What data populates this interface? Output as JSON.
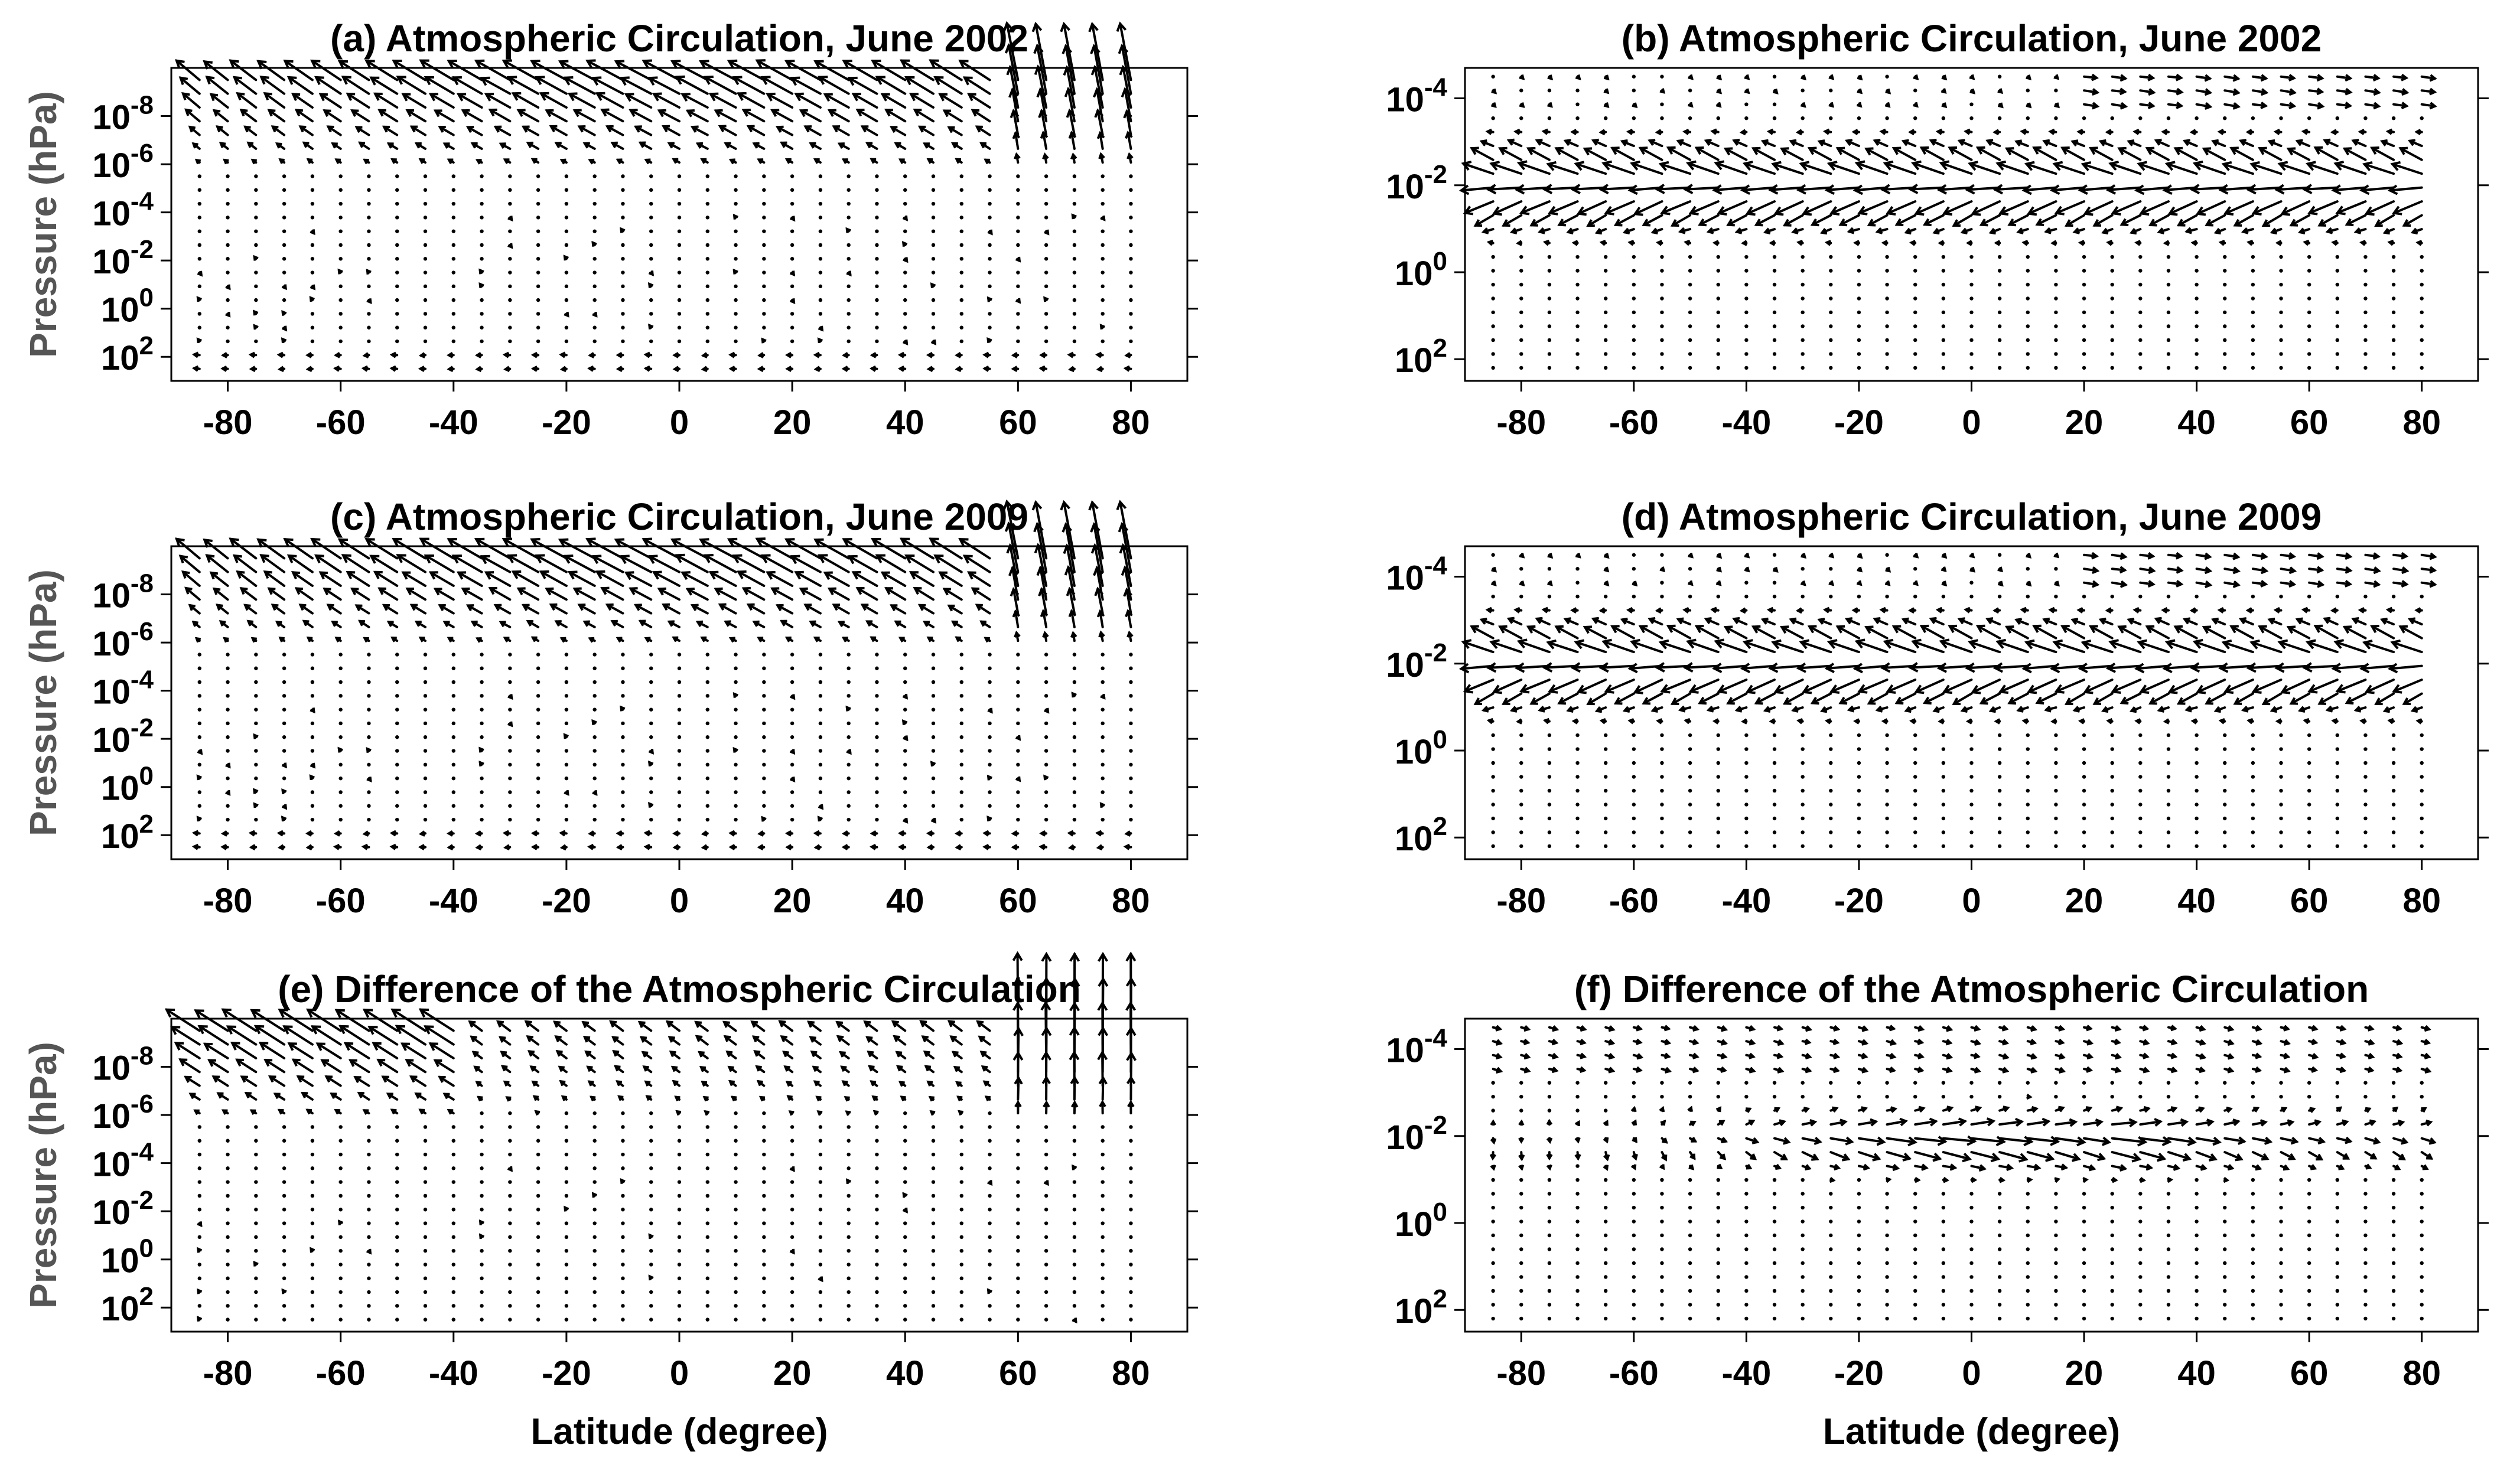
{
  "figure": {
    "y_axis_label": "Pressure (hPa)",
    "x_axis_label": "Latitude (degree)"
  },
  "chart_data": [
    {
      "id": "a",
      "type": "quiver",
      "title": "(a) Atmospheric Circulation, June 2002",
      "xlabel": "",
      "ylabel": "Pressure (hPa)",
      "xlim": [
        -90,
        90
      ],
      "xticks": [
        -80,
        -60,
        -40,
        -20,
        0,
        20,
        40,
        60,
        80
      ],
      "ylog": true,
      "ylim_exp": [
        -10,
        3
      ],
      "yticks": [
        {
          "base": "10",
          "exp": "-8",
          "v": -8
        },
        {
          "base": "10",
          "exp": "-6",
          "v": -6
        },
        {
          "base": "10",
          "exp": "-4",
          "v": -4
        },
        {
          "base": "10",
          "exp": "-2",
          "v": -2
        },
        {
          "base": "10",
          "exp": "0",
          "v": 0
        },
        {
          "base": "10",
          "exp": "2",
          "v": 2
        }
      ],
      "lat_columns": [
        -85,
        -80,
        -75,
        -70,
        -65,
        -60,
        -55,
        -50,
        -45,
        -40,
        -35,
        -30,
        -25,
        -20,
        -15,
        -10,
        -5,
        0,
        5,
        10,
        15,
        20,
        25,
        30,
        35,
        40,
        45,
        50,
        55,
        60,
        65,
        70,
        75,
        80
      ],
      "level_range_exp": [
        -9.5,
        2.5
      ],
      "pattern": "upper"
    },
    {
      "id": "b",
      "type": "quiver",
      "title": "(b) Atmospheric Circulation, June 2002",
      "xlabel": "",
      "ylabel": "",
      "xlim": [
        -90,
        90
      ],
      "xticks": [
        -80,
        -60,
        -40,
        -20,
        0,
        20,
        40,
        60,
        80
      ],
      "ylog": true,
      "ylim_exp": [
        -4.7,
        2.5
      ],
      "yticks": [
        {
          "base": "10",
          "exp": "-4",
          "v": -4
        },
        {
          "base": "10",
          "exp": "-2",
          "v": -2
        },
        {
          "base": "10",
          "exp": "0",
          "v": 0
        },
        {
          "base": "10",
          "exp": "2",
          "v": 2
        }
      ],
      "lat_columns": [
        -85,
        -80,
        -75,
        -70,
        -65,
        -60,
        -55,
        -50,
        -45,
        -40,
        -35,
        -30,
        -25,
        -20,
        -15,
        -10,
        -5,
        0,
        5,
        10,
        15,
        20,
        25,
        30,
        35,
        40,
        45,
        50,
        55,
        60,
        65,
        70,
        75,
        80
      ],
      "level_range_exp": [
        -4.5,
        2.2
      ],
      "pattern": "mid"
    },
    {
      "id": "c",
      "type": "quiver",
      "title": "(c) Atmospheric Circulation, June 2009",
      "xlabel": "",
      "ylabel": "Pressure (hPa)",
      "xlim": [
        -90,
        90
      ],
      "xticks": [
        -80,
        -60,
        -40,
        -20,
        0,
        20,
        40,
        60,
        80
      ],
      "ylog": true,
      "ylim_exp": [
        -10,
        3
      ],
      "yticks": [
        {
          "base": "10",
          "exp": "-8",
          "v": -8
        },
        {
          "base": "10",
          "exp": "-6",
          "v": -6
        },
        {
          "base": "10",
          "exp": "-4",
          "v": -4
        },
        {
          "base": "10",
          "exp": "-2",
          "v": -2
        },
        {
          "base": "10",
          "exp": "0",
          "v": 0
        },
        {
          "base": "10",
          "exp": "2",
          "v": 2
        }
      ],
      "lat_columns": [
        -85,
        -80,
        -75,
        -70,
        -65,
        -60,
        -55,
        -50,
        -45,
        -40,
        -35,
        -30,
        -25,
        -20,
        -15,
        -10,
        -5,
        0,
        5,
        10,
        15,
        20,
        25,
        30,
        35,
        40,
        45,
        50,
        55,
        60,
        65,
        70,
        75,
        80
      ],
      "level_range_exp": [
        -9.5,
        2.5
      ],
      "pattern": "upper"
    },
    {
      "id": "d",
      "type": "quiver",
      "title": "(d) Atmospheric Circulation, June 2009",
      "xlabel": "",
      "ylabel": "",
      "xlim": [
        -90,
        90
      ],
      "xticks": [
        -80,
        -60,
        -40,
        -20,
        0,
        20,
        40,
        60,
        80
      ],
      "ylog": true,
      "ylim_exp": [
        -4.7,
        2.5
      ],
      "yticks": [
        {
          "base": "10",
          "exp": "-4",
          "v": -4
        },
        {
          "base": "10",
          "exp": "-2",
          "v": -2
        },
        {
          "base": "10",
          "exp": "0",
          "v": 0
        },
        {
          "base": "10",
          "exp": "2",
          "v": 2
        }
      ],
      "lat_columns": [
        -85,
        -80,
        -75,
        -70,
        -65,
        -60,
        -55,
        -50,
        -45,
        -40,
        -35,
        -30,
        -25,
        -20,
        -15,
        -10,
        -5,
        0,
        5,
        10,
        15,
        20,
        25,
        30,
        35,
        40,
        45,
        50,
        55,
        60,
        65,
        70,
        75,
        80
      ],
      "level_range_exp": [
        -4.5,
        2.2
      ],
      "pattern": "mid"
    },
    {
      "id": "e",
      "type": "quiver",
      "title": "(e) Difference of the Atmospheric Circulation",
      "xlabel": "Latitude (degree)",
      "ylabel": "Pressure (hPa)",
      "xlim": [
        -90,
        90
      ],
      "xticks": [
        -80,
        -60,
        -40,
        -20,
        0,
        20,
        40,
        60,
        80
      ],
      "ylog": true,
      "ylim_exp": [
        -10,
        3
      ],
      "yticks": [
        {
          "base": "10",
          "exp": "-8",
          "v": -8
        },
        {
          "base": "10",
          "exp": "-6",
          "v": -6
        },
        {
          "base": "10",
          "exp": "-4",
          "v": -4
        },
        {
          "base": "10",
          "exp": "-2",
          "v": -2
        },
        {
          "base": "10",
          "exp": "0",
          "v": 0
        },
        {
          "base": "10",
          "exp": "2",
          "v": 2
        }
      ],
      "lat_columns": [
        -85,
        -80,
        -75,
        -70,
        -65,
        -60,
        -55,
        -50,
        -45,
        -40,
        -35,
        -30,
        -25,
        -20,
        -15,
        -10,
        -5,
        0,
        5,
        10,
        15,
        20,
        25,
        30,
        35,
        40,
        45,
        50,
        55,
        60,
        65,
        70,
        75,
        80
      ],
      "level_range_exp": [
        -9.5,
        2.5
      ],
      "pattern": "diffupper"
    },
    {
      "id": "f",
      "type": "quiver",
      "title": "(f) Difference of the Atmospheric Circulation",
      "xlabel": "Latitude (degree)",
      "ylabel": "",
      "xlim": [
        -90,
        90
      ],
      "xticks": [
        -80,
        -60,
        -40,
        -20,
        0,
        20,
        40,
        60,
        80
      ],
      "ylog": true,
      "ylim_exp": [
        -4.7,
        2.5
      ],
      "yticks": [
        {
          "base": "10",
          "exp": "-4",
          "v": -4
        },
        {
          "base": "10",
          "exp": "-2",
          "v": -2
        },
        {
          "base": "10",
          "exp": "0",
          "v": 0
        },
        {
          "base": "10",
          "exp": "2",
          "v": 2
        }
      ],
      "lat_columns": [
        -85,
        -80,
        -75,
        -70,
        -65,
        -60,
        -55,
        -50,
        -45,
        -40,
        -35,
        -30,
        -25,
        -20,
        -15,
        -10,
        -5,
        0,
        5,
        10,
        15,
        20,
        25,
        30,
        35,
        40,
        45,
        50,
        55,
        60,
        65,
        70,
        75,
        80
      ],
      "level_range_exp": [
        -4.5,
        2.2
      ],
      "pattern": "diffmid"
    }
  ]
}
